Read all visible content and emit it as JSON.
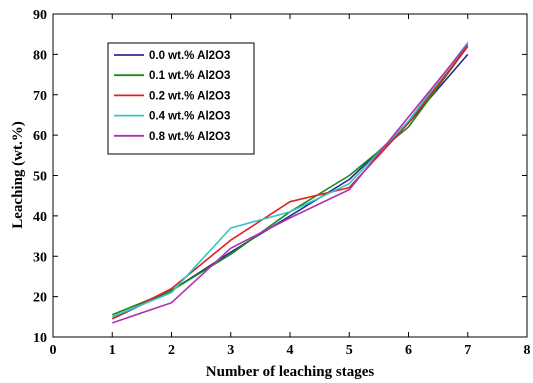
{
  "chart_data": {
    "type": "line",
    "title": "",
    "xlabel": "Number of leaching stages",
    "ylabel": "Leaching (wt.%)",
    "xlim": [
      0,
      8
    ],
    "ylim": [
      10,
      90
    ],
    "xticks": [
      0,
      1,
      2,
      3,
      4,
      5,
      6,
      7,
      8
    ],
    "yticks": [
      10,
      20,
      30,
      40,
      50,
      60,
      70,
      80,
      90
    ],
    "grid": false,
    "legend_position": "top-left",
    "x": [
      1,
      2,
      3,
      4,
      5,
      6,
      7
    ],
    "series": [
      {
        "name": "0.0 wt.% Al2O3",
        "color": "#2b2b8f",
        "values": [
          14.5,
          21.5,
          31,
          40,
          49,
          63,
          80
        ]
      },
      {
        "name": "0.1 wt.% Al2O3",
        "color": "#1a8a1a",
        "values": [
          15.5,
          21.5,
          30.5,
          41,
          50,
          62,
          82
        ]
      },
      {
        "name": "0.2 wt.% Al2O3",
        "color": "#e0201e",
        "values": [
          14.5,
          22,
          34,
          43.5,
          47,
          63,
          82
        ]
      },
      {
        "name": "0.4 wt.% Al2O3",
        "color": "#33c6c6",
        "values": [
          15,
          21,
          37,
          41,
          48,
          63.5,
          83
        ]
      },
      {
        "name": "0.8 wt.% Al2O3",
        "color": "#b030b0",
        "values": [
          13.5,
          18.5,
          32,
          39.5,
          46.5,
          64.5,
          82.5
        ]
      }
    ]
  }
}
